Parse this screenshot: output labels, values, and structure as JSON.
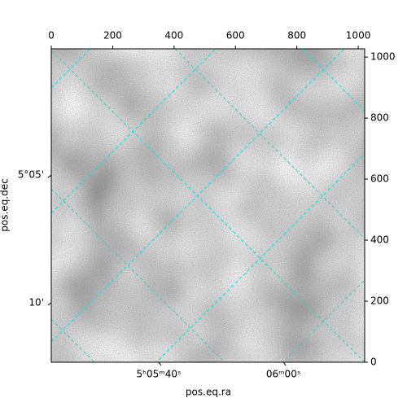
{
  "chart_data": {
    "type": "image",
    "xlabel": "pos.eq.ra",
    "ylabel": "pos.eq.dec",
    "xlim": [
      0,
      1021
    ],
    "ylim": [
      0,
      1027
    ],
    "xticks": [
      0,
      200,
      400,
      600,
      800,
      1000
    ],
    "yticks": [
      0,
      200,
      400,
      600,
      800,
      1000
    ],
    "ra_ticks": [
      {
        "value": 350,
        "label": "5ʰ05ᵐ40ˢ"
      },
      {
        "value": 756,
        "label": "06ᵐ00ˢ"
      }
    ],
    "dec_ticks": [
      {
        "value": 613,
        "label": "5°05'"
      },
      {
        "value": 195,
        "label": "10'"
      }
    ],
    "grid_color": "#2ad4d4"
  }
}
